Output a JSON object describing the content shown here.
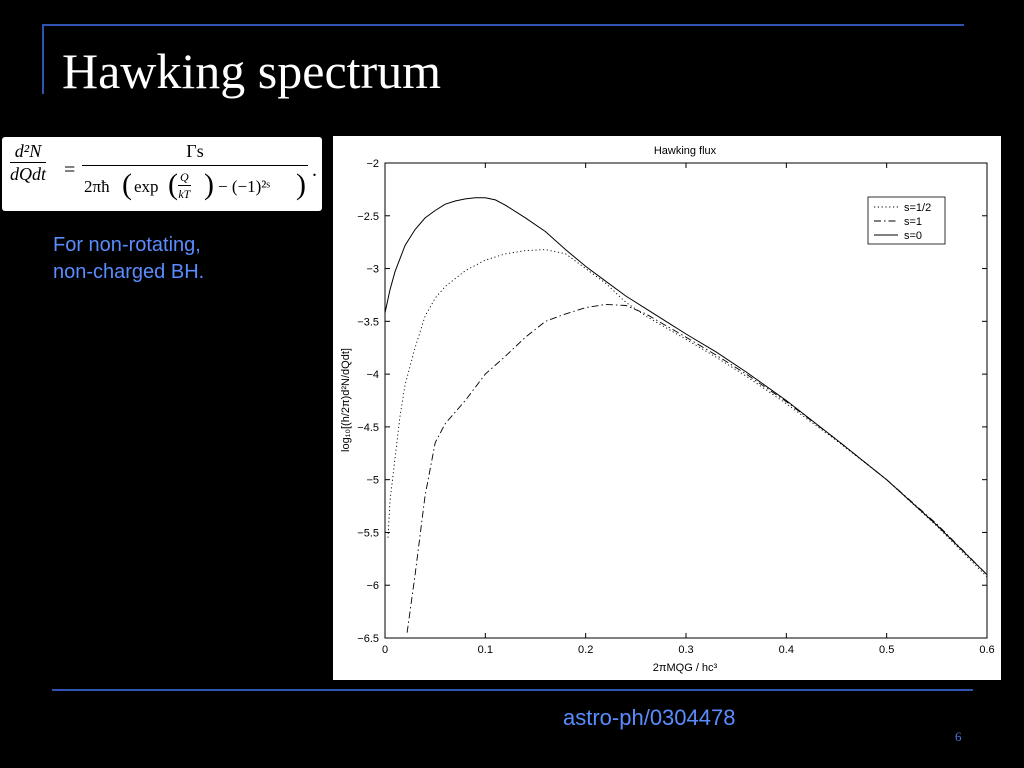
{
  "slide": {
    "title": "Hawking spectrum",
    "note_lines": [
      "For non-rotating,",
      "non-charged BH."
    ],
    "citation": "astro-ph/0304478",
    "page_number": "6",
    "accent_color": "#2f55b0",
    "text_color": "#5a8cff"
  },
  "formula": {
    "lhs_num": "d²N",
    "lhs_den": "dQdt",
    "equals": "=",
    "rhs_num": "Γs",
    "rhs_den_prefix": "2πħ",
    "exp_label": "exp",
    "inner_num": "Q",
    "inner_den": "kT",
    "rhs_den_suffix": "− (−1)²ˢ",
    "period": "."
  },
  "chart_data": {
    "type": "line",
    "title": "Hawking flux",
    "xlabel": "2πMQG / hc³",
    "ylabel": "log₁₀[(h/2π)d²N/dQdt]",
    "xlim": [
      0,
      0.6
    ],
    "ylim": [
      -6.5,
      -2
    ],
    "x_ticks": [
      "0",
      "0.1",
      "0.2",
      "0.3",
      "0.4",
      "0.5",
      "0.6"
    ],
    "y_ticks": [
      "−2",
      "−2.5",
      "−3",
      "−3.5",
      "−4",
      "−4.5",
      "−5",
      "−5.5",
      "−6",
      "−6.5"
    ],
    "grid": false,
    "legend_position": "top-right",
    "series": [
      {
        "name": "s=1/2",
        "style": "dotted",
        "x": [
          0.003,
          0.005,
          0.01,
          0.015,
          0.02,
          0.03,
          0.04,
          0.05,
          0.06,
          0.08,
          0.1,
          0.12,
          0.14,
          0.16,
          0.18,
          0.2,
          0.22,
          0.24,
          0.26,
          0.28,
          0.3,
          0.33,
          0.36,
          0.4,
          0.45,
          0.5,
          0.55,
          0.6
        ],
        "y": [
          -5.55,
          -5.2,
          -4.8,
          -4.4,
          -4.1,
          -3.75,
          -3.45,
          -3.28,
          -3.17,
          -3.02,
          -2.92,
          -2.86,
          -2.83,
          -2.82,
          -2.86,
          -3.0,
          -3.14,
          -3.32,
          -3.45,
          -3.56,
          -3.67,
          -3.84,
          -4.02,
          -4.28,
          -4.63,
          -5.0,
          -5.44,
          -5.92
        ]
      },
      {
        "name": "s=1",
        "style": "dash-dot",
        "x": [
          0.022,
          0.03,
          0.04,
          0.05,
          0.06,
          0.08,
          0.1,
          0.12,
          0.14,
          0.16,
          0.18,
          0.2,
          0.22,
          0.24,
          0.26,
          0.28,
          0.3,
          0.33,
          0.36,
          0.4,
          0.45,
          0.5,
          0.55,
          0.6
        ],
        "y": [
          -6.45,
          -5.9,
          -5.15,
          -4.65,
          -4.47,
          -4.25,
          -4.0,
          -3.83,
          -3.65,
          -3.5,
          -3.43,
          -3.37,
          -3.34,
          -3.35,
          -3.43,
          -3.54,
          -3.65,
          -3.82,
          -4.0,
          -4.26,
          -4.62,
          -5.0,
          -5.42,
          -5.9
        ]
      },
      {
        "name": "s=0",
        "style": "solid",
        "x": [
          0.0,
          0.005,
          0.01,
          0.02,
          0.03,
          0.04,
          0.05,
          0.06,
          0.07,
          0.08,
          0.09,
          0.1,
          0.11,
          0.12,
          0.14,
          0.16,
          0.18,
          0.2,
          0.22,
          0.24,
          0.26,
          0.28,
          0.3,
          0.33,
          0.36,
          0.4,
          0.45,
          0.5,
          0.55,
          0.6
        ],
        "y": [
          -3.42,
          -3.2,
          -3.03,
          -2.78,
          -2.63,
          -2.52,
          -2.45,
          -2.39,
          -2.36,
          -2.34,
          -2.33,
          -2.33,
          -2.35,
          -2.4,
          -2.52,
          -2.65,
          -2.82,
          -2.98,
          -3.12,
          -3.26,
          -3.38,
          -3.5,
          -3.62,
          -3.79,
          -3.98,
          -4.25,
          -4.62,
          -5.0,
          -5.43,
          -5.9
        ]
      }
    ]
  }
}
